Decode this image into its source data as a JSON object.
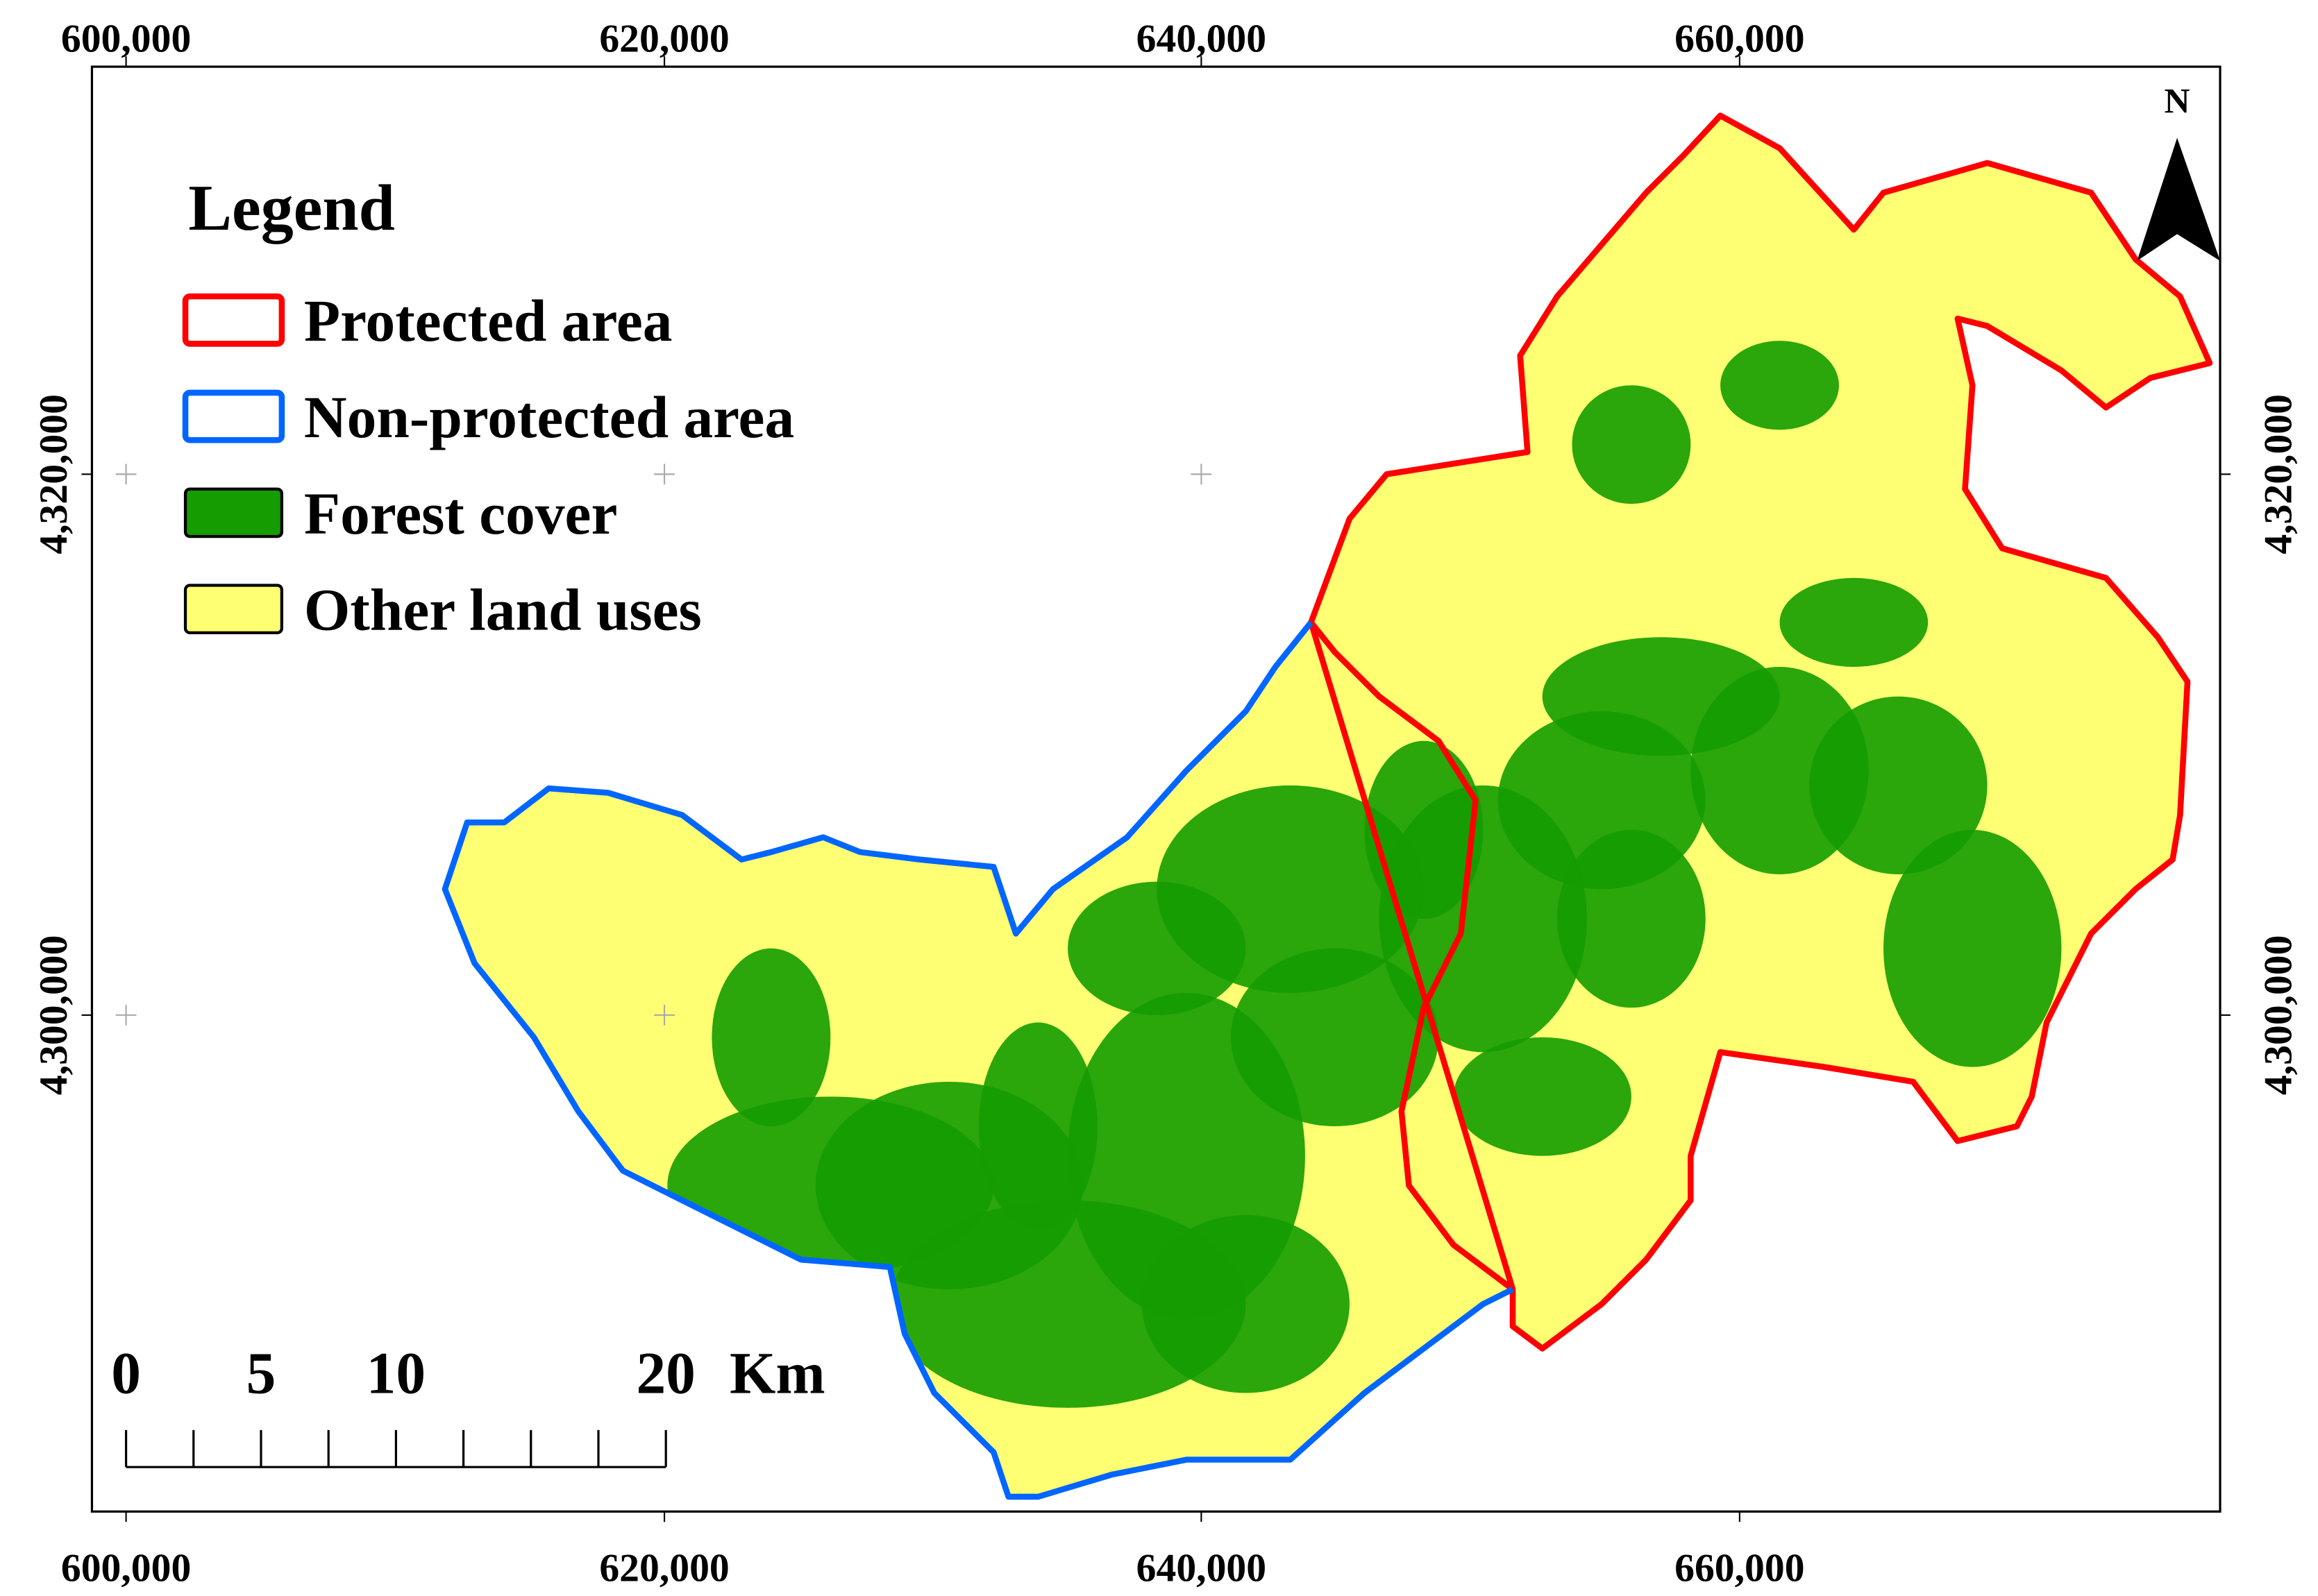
{
  "map": {
    "x_ticks": [
      "600,000",
      "620,000",
      "640,000",
      "660,000"
    ],
    "y_ticks": [
      "4,320,000",
      "4,300,000"
    ],
    "north": "N",
    "legend": {
      "title": "Legend",
      "items": [
        "Protected area",
        "Non-protected area",
        "Forest cover",
        "Other land uses"
      ]
    },
    "scale_bar": {
      "labels": [
        0,
        5,
        10,
        20
      ],
      "unit": "Km"
    }
  }
}
